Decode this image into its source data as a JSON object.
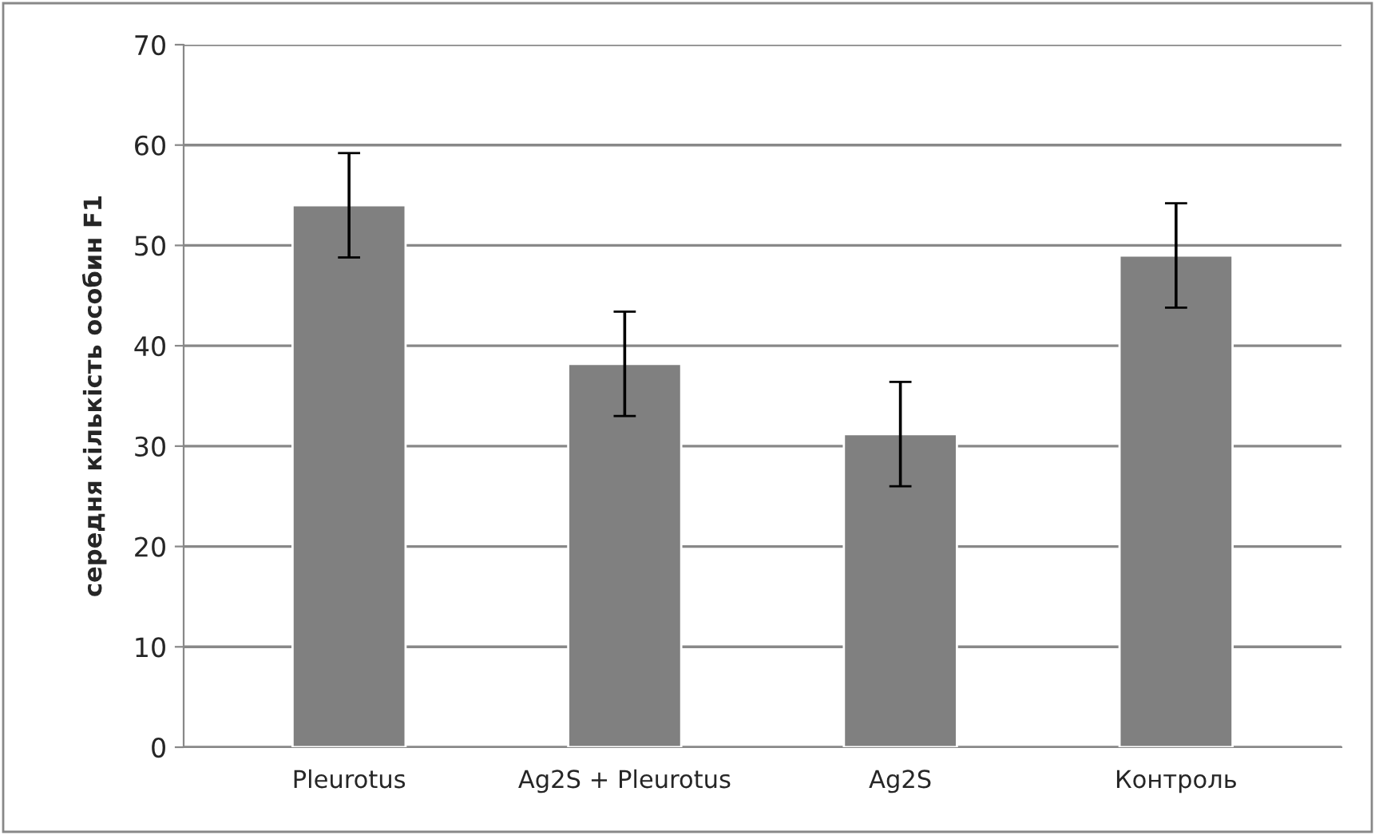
{
  "chart_data": {
    "type": "bar",
    "ylabel": "середня кількість особин F1",
    "categories": [
      "Pleurotus",
      "Ag2S + Pleurotus",
      "Ag2S",
      "Контроль"
    ],
    "values": [
      54,
      38.2,
      31.2,
      49
    ],
    "errors": [
      5.2,
      5.2,
      5.2,
      5.2
    ],
    "color": "#808080",
    "ylim": [
      0,
      70
    ],
    "yticks": [
      0,
      10,
      20,
      30,
      40,
      50,
      60,
      70
    ],
    "grid": "y"
  }
}
